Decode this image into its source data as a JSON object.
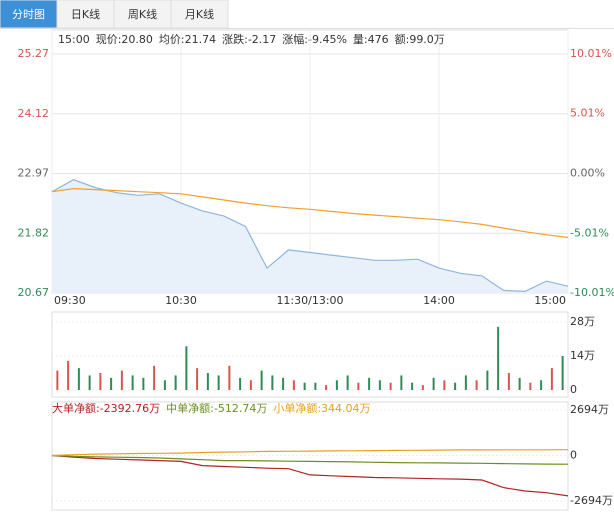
{
  "tabs": [
    "分时图",
    "日K线",
    "周K线",
    "月K线"
  ],
  "info": [
    "15:00",
    "现价:20.80",
    "均价:21.74",
    "涨跌:-2.17",
    "涨幅:-9.45%",
    "量:476",
    "额:99.0万"
  ],
  "chart_data": [
    {
      "type": "line",
      "x": [
        0,
        10,
        20,
        30,
        40,
        50,
        60,
        70,
        80,
        90,
        100,
        110,
        120,
        130,
        140,
        150,
        160,
        170,
        180,
        190,
        200,
        210,
        220,
        230,
        240
      ],
      "xlim": [
        0,
        240
      ],
      "xticks": [
        {
          "value": 0,
          "label": "09:30"
        },
        {
          "value": 60,
          "label": "10:30"
        },
        {
          "value": 120,
          "label": "11:30/13:00"
        },
        {
          "value": 180,
          "label": "14:00"
        },
        {
          "value": 240,
          "label": "15:00"
        }
      ],
      "ylim": [
        20.67,
        25.27
      ],
      "yticks": [
        25.27,
        24.12,
        22.97,
        21.82,
        20.67
      ],
      "y2lim": [
        -10.01,
        10.01
      ],
      "y2ticks": [
        {
          "value": 10.01,
          "label": "10.01%"
        },
        {
          "value": 5.01,
          "label": "5.01%"
        },
        {
          "value": 0,
          "label": "0.00%"
        },
        {
          "value": -5.01,
          "label": "-5.01%"
        },
        {
          "value": -10.01,
          "label": "-10.01%"
        }
      ],
      "grid": true,
      "series": [
        {
          "color": "#8fb6dd",
          "fill": "#e8f1fa",
          "values": [
            22.62,
            22.85,
            22.7,
            22.6,
            22.55,
            22.58,
            22.4,
            22.25,
            22.15,
            21.95,
            21.15,
            21.5,
            21.45,
            21.4,
            21.35,
            21.3,
            21.3,
            21.32,
            21.15,
            21.05,
            21.0,
            20.72,
            20.7,
            20.9,
            20.8
          ]
        },
        {
          "color": "#f0a030",
          "values": [
            22.62,
            22.68,
            22.66,
            22.64,
            22.62,
            22.6,
            22.58,
            22.52,
            22.46,
            22.4,
            22.35,
            22.31,
            22.28,
            22.24,
            22.2,
            22.17,
            22.14,
            22.11,
            22.08,
            22.04,
            21.99,
            21.92,
            21.85,
            21.79,
            21.74
          ]
        }
      ]
    },
    {
      "type": "bar",
      "ylim": [
        0,
        28
      ],
      "yticks": [
        {
          "value": 28,
          "label": "28万"
        },
        {
          "value": 14,
          "label": "14万"
        },
        0
      ],
      "values": [
        8,
        12,
        9,
        6,
        7,
        5,
        8,
        6,
        5,
        10,
        4,
        6,
        18,
        9,
        7,
        6,
        10,
        5,
        4,
        8,
        6,
        5,
        4,
        3,
        3,
        2,
        4,
        6,
        3,
        5,
        4,
        3,
        6,
        3,
        2,
        5,
        4,
        3,
        6,
        4,
        8,
        26,
        7,
        5,
        3,
        4,
        9,
        14
      ],
      "colors": [
        "#d9534f",
        "#d9534f",
        "#2e8b57",
        "#2e8b57",
        "#d9534f",
        "#2e8b57",
        "#d9534f",
        "#2e8b57",
        "#2e8b57",
        "#d9534f",
        "#2e8b57",
        "#2e8b57",
        "#2e8b57",
        "#d9534f",
        "#2e8b57",
        "#2e8b57",
        "#d9534f",
        "#2e8b57",
        "#d9534f",
        "#2e8b57",
        "#2e8b57",
        "#2e8b57",
        "#d9534f",
        "#2e8b57",
        "#2e8b57",
        "#d9534f",
        "#2e8b57",
        "#2e8b57",
        "#d9534f",
        "#2e8b57",
        "#2e8b57",
        "#d9534f",
        "#2e8b57",
        "#2e8b57",
        "#d9534f",
        "#2e8b57",
        "#d9534f",
        "#2e8b57",
        "#2e8b57",
        "#d9534f",
        "#2e8b57",
        "#2e8b57",
        "#d9534f",
        "#2e8b57",
        "#d9534f",
        "#2e8b57",
        "#d9534f",
        "#2e8b57"
      ]
    },
    {
      "type": "line",
      "x": [
        0,
        10,
        20,
        30,
        40,
        50,
        60,
        70,
        80,
        90,
        100,
        110,
        120,
        130,
        140,
        150,
        160,
        170,
        180,
        190,
        200,
        210,
        220,
        230,
        240
      ],
      "xlim": [
        0,
        240
      ],
      "ylim": [
        -2694,
        2694
      ],
      "yticks": [
        {
          "value": 2694,
          "label": "2694万"
        },
        0,
        {
          "value": -2694,
          "label": "-2694万"
        }
      ],
      "series": [
        {
          "name": "大单净额:-2392.76万",
          "color": "#b22222",
          "values": [
            0,
            -100,
            -180,
            -220,
            -260,
            -300,
            -350,
            -600,
            -650,
            -700,
            -750,
            -780,
            -1150,
            -1200,
            -1250,
            -1300,
            -1320,
            -1350,
            -1380,
            -1400,
            -1450,
            -1900,
            -2100,
            -2200,
            -2392.76
          ]
        },
        {
          "name": "中单净额:-512.74万",
          "color": "#6b8e23",
          "values": [
            0,
            -50,
            -80,
            -100,
            -120,
            -150,
            -200,
            -250,
            -300,
            -300,
            -320,
            -340,
            -350,
            -360,
            -380,
            -400,
            -420,
            -430,
            -440,
            -450,
            -460,
            -480,
            -500,
            -510,
            -512.74
          ]
        },
        {
          "name": "小单净额:344.04万",
          "color": "#e8a020",
          "values": [
            0,
            50,
            80,
            100,
            120,
            130,
            140,
            180,
            200,
            220,
            240,
            250,
            260,
            270,
            280,
            290,
            300,
            310,
            320,
            330,
            330,
            335,
            340,
            340,
            344.04
          ]
        }
      ]
    }
  ]
}
